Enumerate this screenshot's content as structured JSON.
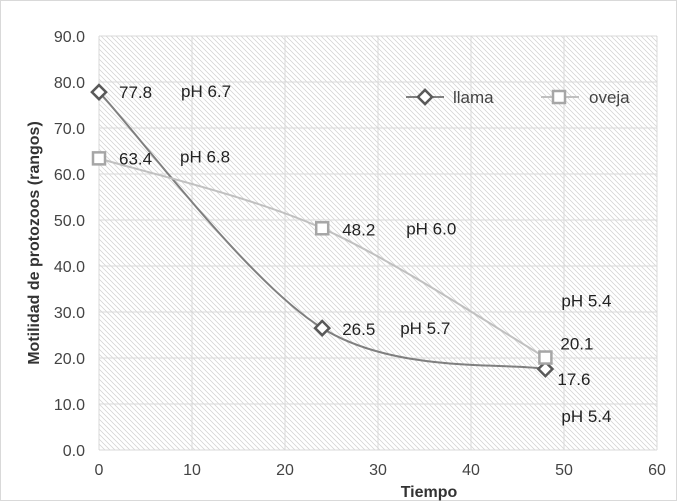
{
  "chart_data": {
    "type": "scatter",
    "xlabel": "Tiempo",
    "ylabel": "Motilidad de protozoos (rangos)",
    "xlim": [
      0,
      60
    ],
    "ylim": [
      0,
      90
    ],
    "x_ticks": [
      "0",
      "10",
      "20",
      "30",
      "40",
      "50",
      "60"
    ],
    "y_ticks": [
      "0.0",
      "10.0",
      "20.0",
      "30.0",
      "40.0",
      "50.0",
      "60.0",
      "70.0",
      "80.0",
      "90.0"
    ],
    "grid": true,
    "legend_position": "top-right",
    "series": [
      {
        "name": "llama",
        "marker": "diamond",
        "color": "#7f7f7f",
        "points": [
          {
            "x": 0,
            "y": 77.8,
            "label": "77.8",
            "ph": "pH 6.7"
          },
          {
            "x": 24,
            "y": 26.5,
            "label": "26.5",
            "ph": "pH 5.7"
          },
          {
            "x": 48,
            "y": 17.6,
            "label": "17.6",
            "ph": "pH 5.4"
          }
        ]
      },
      {
        "name": "oveja",
        "marker": "square",
        "color": "#c0c0c0",
        "points": [
          {
            "x": 0,
            "y": 63.4,
            "label": "63.4",
            "ph": "pH 6.8"
          },
          {
            "x": 24,
            "y": 48.2,
            "label": "48.2",
            "ph": "pH 6.0"
          },
          {
            "x": 48,
            "y": 20.1,
            "label": "20.1",
            "ph": "pH 5.4"
          }
        ]
      }
    ]
  }
}
